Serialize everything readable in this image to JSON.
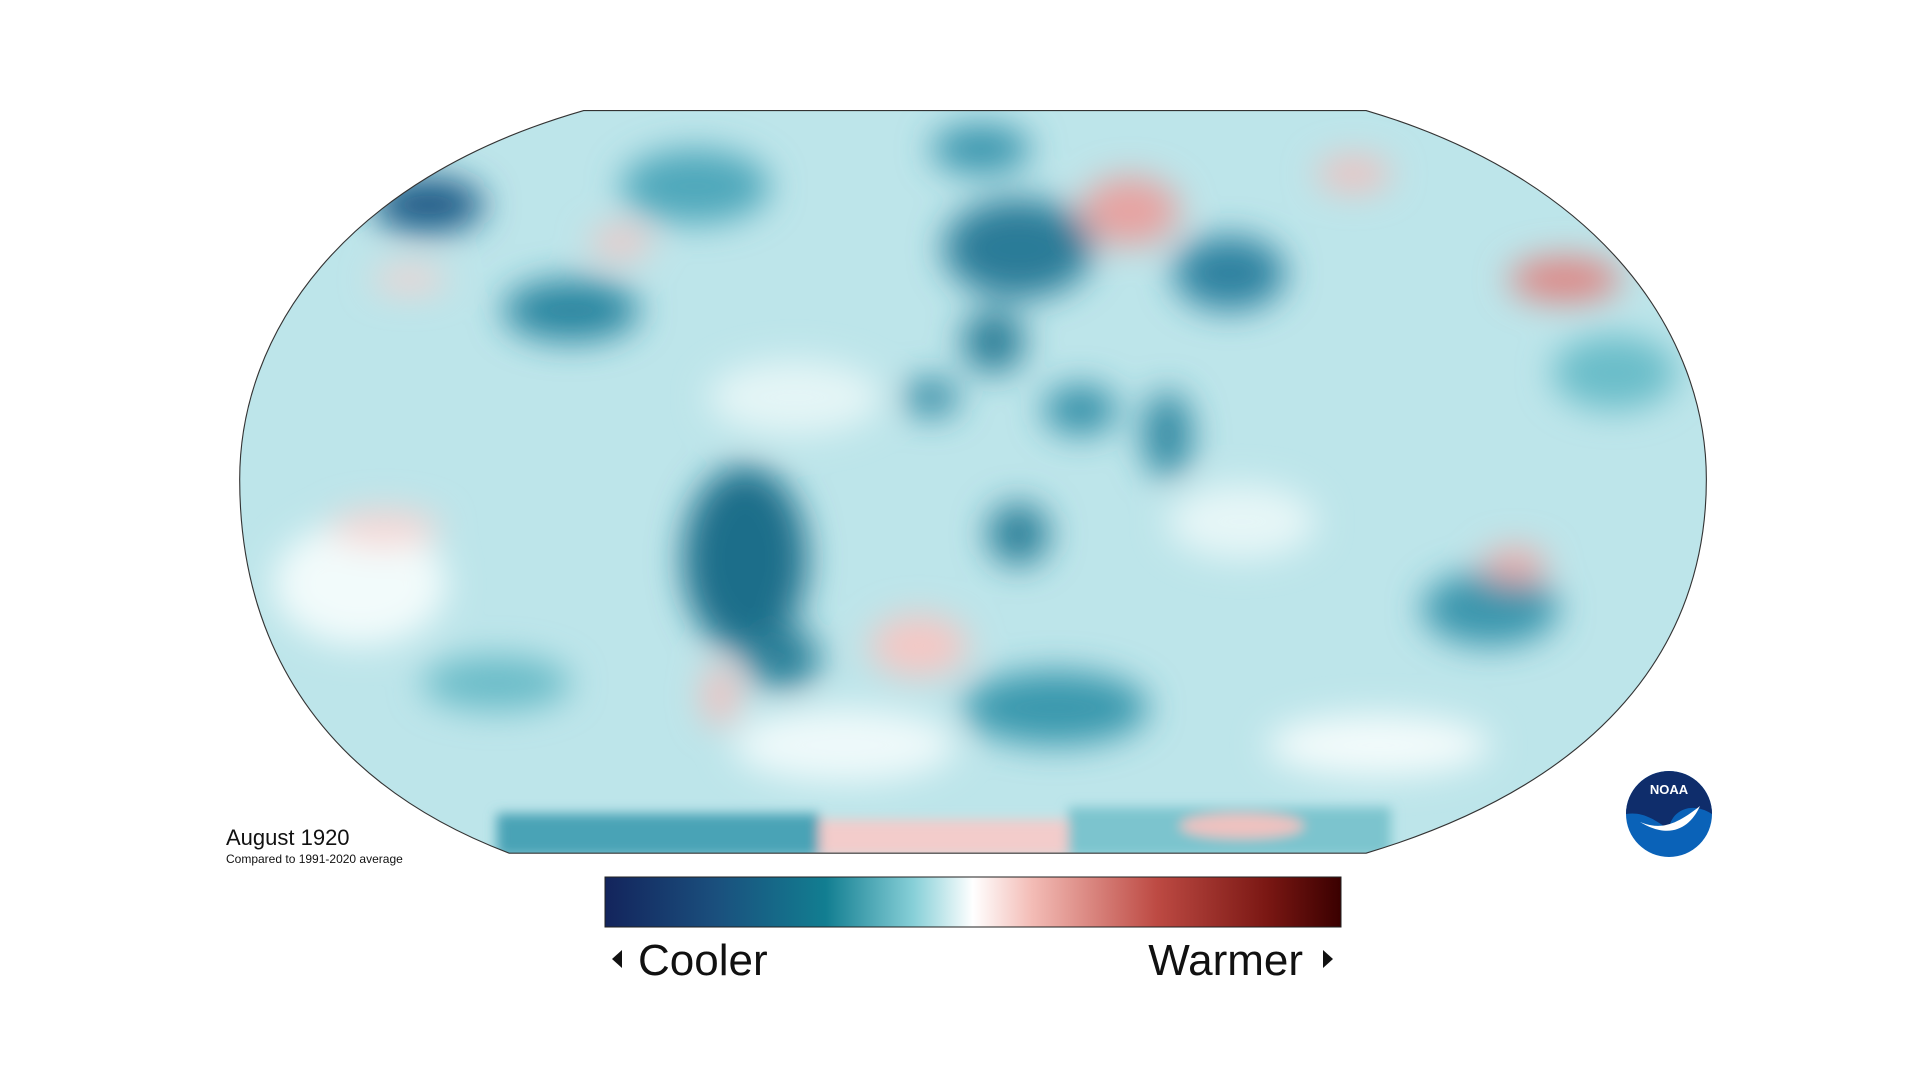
{
  "map": {
    "title": "August 1920",
    "subtitle": "Compared to 1991-2020 average"
  },
  "legend": {
    "low_label": "Cooler",
    "high_label": "Warmer"
  },
  "logo": {
    "text": "NOAA"
  }
}
